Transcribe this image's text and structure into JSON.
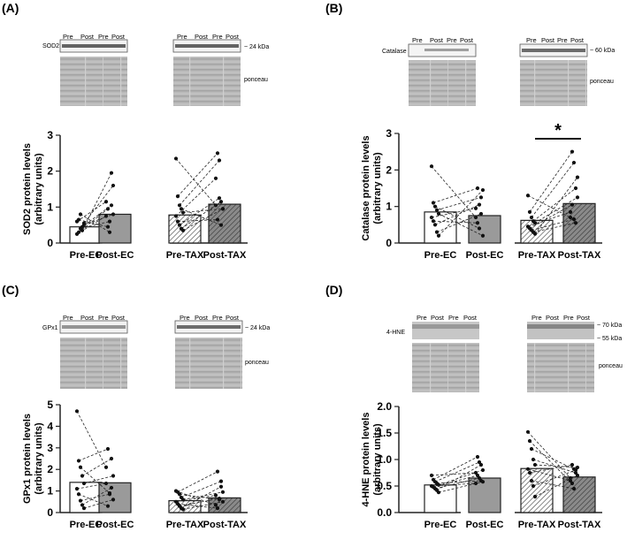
{
  "figure": {
    "panels": [
      {
        "letter": "(A)",
        "protein_label": "SOD2",
        "size_labels": [
          "~ 24 kDa"
        ],
        "loading_label": "ponceau",
        "lanes": [
          "Pre",
          "Post",
          "Pre",
          "Post"
        ]
      },
      {
        "letter": "(B)",
        "protein_label": "Catalase",
        "size_labels": [
          "~ 60 kDa"
        ],
        "loading_label": "ponceau",
        "lanes": [
          "Pre",
          "Post",
          "Pre",
          "Post"
        ]
      },
      {
        "letter": "(C)",
        "protein_label": "GPx1",
        "size_labels": [
          "~ 24 kDa"
        ],
        "loading_label": "ponceau",
        "lanes": [
          "Pre",
          "Post",
          "Pre",
          "Post"
        ]
      },
      {
        "letter": "(D)",
        "protein_label": "4-HNE",
        "size_labels": [
          "~ 70 kDa",
          "~ 55 kDa"
        ],
        "loading_label": "ponceau",
        "lanes": [
          "Pre",
          "Post",
          "Pre",
          "Post"
        ]
      }
    ]
  },
  "chart_data": [
    {
      "type": "bar",
      "title": "SOD2",
      "ylabel": "SOD2 protein levels (arbitrary units)",
      "ylabel_lines": [
        "SOD2 protein levels",
        "(arbitrary units)"
      ],
      "ylim": [
        0,
        3
      ],
      "yticks": [
        "0",
        "1",
        "2",
        "3"
      ],
      "categories": [
        "Pre-EC",
        "Post-EC",
        "Pre-TAX",
        "Post-TAX"
      ],
      "values": [
        0.45,
        0.8,
        0.78,
        1.08
      ],
      "significance": null,
      "paired_points": {
        "EC": [
          [
            0.25,
            0.75
          ],
          [
            0.3,
            0.95
          ],
          [
            0.4,
            0.6
          ],
          [
            0.45,
            1.05
          ],
          [
            0.5,
            0.8
          ],
          [
            0.6,
            1.15
          ],
          [
            0.65,
            0.45
          ],
          [
            0.8,
            0.3
          ],
          [
            0.35,
            1.95
          ],
          [
            0.55,
            1.6
          ]
        ],
        "TAX": [
          [
            2.35,
            1.05
          ],
          [
            1.3,
            2.5
          ],
          [
            1.05,
            2.3
          ],
          [
            0.95,
            0.5
          ],
          [
            0.85,
            0.95
          ],
          [
            0.75,
            1.8
          ],
          [
            0.6,
            0.65
          ],
          [
            0.5,
            1.25
          ],
          [
            0.4,
            1.15
          ],
          [
            0.35,
            0.95
          ]
        ]
      }
    },
    {
      "type": "bar",
      "title": "Catalase",
      "ylabel": "Catalase protein levels (arbitrary units)",
      "ylabel_lines": [
        "Catalase protein levels",
        "(arbitrary units)"
      ],
      "ylim": [
        0,
        3
      ],
      "yticks": [
        "0",
        "1",
        "2",
        "3"
      ],
      "categories": [
        "Pre-EC",
        "Post-EC",
        "Pre-TAX",
        "Post-TAX"
      ],
      "values": [
        0.85,
        0.75,
        0.62,
        1.08
      ],
      "significance": {
        "between": [
          "Pre-TAX",
          "Post-TAX"
        ],
        "label": "*"
      },
      "paired_points": {
        "EC": [
          [
            2.1,
            0.7
          ],
          [
            1.1,
            1.5
          ],
          [
            1.0,
            0.4
          ],
          [
            0.9,
            1.25
          ],
          [
            0.8,
            0.2
          ],
          [
            0.7,
            0.95
          ],
          [
            0.6,
            0.55
          ],
          [
            0.5,
            1.05
          ],
          [
            0.3,
            0.8
          ],
          [
            0.2,
            1.45
          ]
        ],
        "TAX": [
          [
            1.3,
            0.7
          ],
          [
            0.85,
            2.5
          ],
          [
            0.7,
            2.2
          ],
          [
            0.6,
            1.5
          ],
          [
            0.55,
            1.25
          ],
          [
            0.45,
            0.85
          ],
          [
            0.4,
            1.05
          ],
          [
            0.35,
            0.65
          ],
          [
            0.3,
            0.55
          ],
          [
            0.25,
            1.8
          ]
        ]
      }
    },
    {
      "type": "bar",
      "title": "GPx1",
      "ylabel": "GPx1 protein levels (arbitrary units)",
      "ylabel_lines": [
        "GPx1 protein levels",
        "(arbitrary units)"
      ],
      "ylim": [
        0,
        5
      ],
      "yticks": [
        "0",
        "1",
        "2",
        "3",
        "4",
        "5"
      ],
      "categories": [
        "Pre-EC",
        "Post-EC",
        "Pre-TAX",
        "Post-TAX"
      ],
      "values": [
        1.4,
        1.38,
        0.55,
        0.68
      ],
      "significance": null,
      "paired_points": {
        "EC": [
          [
            4.7,
            2.1
          ],
          [
            2.4,
            2.95
          ],
          [
            2.1,
            0.9
          ],
          [
            1.7,
            2.5
          ],
          [
            1.35,
            1.7
          ],
          [
            1.1,
            1.35
          ],
          [
            0.85,
            0.3
          ],
          [
            0.55,
            0.85
          ],
          [
            0.35,
            1.15
          ],
          [
            0.2,
            0.6
          ]
        ],
        "TAX": [
          [
            1.0,
            0.35
          ],
          [
            0.95,
            1.9
          ],
          [
            0.85,
            0.6
          ],
          [
            0.7,
            1.45
          ],
          [
            0.6,
            0.95
          ],
          [
            0.5,
            0.8
          ],
          [
            0.4,
            0.2
          ],
          [
            0.3,
            0.65
          ],
          [
            0.2,
            1.2
          ],
          [
            0.15,
            0.5
          ]
        ]
      }
    },
    {
      "type": "bar",
      "title": "4-HNE",
      "ylabel": "4-HNE protein levels (arbitrary units)",
      "ylabel_lines": [
        "4-HNE protein levels",
        "(arbitrary units)"
      ],
      "ylim": [
        0,
        2.0
      ],
      "yticks": [
        "0.0",
        "0.5",
        "1.0",
        "1.5",
        "2.0"
      ],
      "categories": [
        "Pre-EC",
        "Post-EC",
        "Pre-TAX",
        "Post-TAX"
      ],
      "values": [
        0.52,
        0.65,
        0.83,
        0.67
      ],
      "significance": null,
      "paired_points": {
        "EC": [
          [
            0.7,
            0.75
          ],
          [
            0.62,
            1.05
          ],
          [
            0.58,
            0.95
          ],
          [
            0.55,
            0.6
          ],
          [
            0.52,
            0.8
          ],
          [
            0.5,
            0.55
          ],
          [
            0.48,
            0.7
          ],
          [
            0.45,
            0.65
          ],
          [
            0.42,
            0.9
          ],
          [
            0.38,
            0.58
          ]
        ],
        "TAX": [
          [
            1.52,
            0.65
          ],
          [
            1.35,
            0.55
          ],
          [
            1.2,
            0.82
          ],
          [
            1.0,
            0.75
          ],
          [
            0.9,
            0.85
          ],
          [
            0.82,
            0.6
          ],
          [
            0.75,
            0.9
          ],
          [
            0.6,
            0.45
          ],
          [
            0.5,
            0.8
          ],
          [
            0.3,
            0.7
          ]
        ]
      }
    }
  ]
}
